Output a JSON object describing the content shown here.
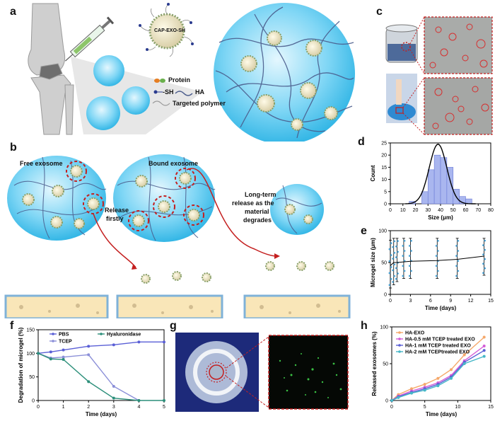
{
  "panel_labels": {
    "a": "a",
    "b": "b",
    "c": "c",
    "d": "d",
    "e": "e",
    "f": "f",
    "g": "g",
    "h": "h"
  },
  "panel_a": {
    "exo_label": "CAP-EXO-SH",
    "legend": {
      "protein": "Protein",
      "sh": "-SH",
      "ha": "HA",
      "polymer": "Targeted polymer"
    }
  },
  "panel_b": {
    "free": "Free exosome",
    "bound": "Bound exosome",
    "release_firstly": [
      "Release",
      "firstly"
    ],
    "long_term": [
      "Long-term",
      "release as the",
      "material",
      "degrades"
    ]
  },
  "colors": {
    "gel": "#5ccbf0",
    "gel_light": "#d4f2fc",
    "red_dash": "#c41f1f",
    "tissue": "#f9e6b8",
    "tissue_edge": "#7fb2d8"
  },
  "chart_data": [
    {
      "id": "d",
      "type": "bar",
      "xlabel": "Size (μm)",
      "ylabel": "Count",
      "xlim": [
        0,
        80
      ],
      "ylim": [
        0,
        25
      ],
      "xticks": [
        0,
        10,
        20,
        30,
        40,
        50,
        60,
        70,
        80
      ],
      "yticks": [
        0,
        5,
        10,
        15,
        20,
        25
      ],
      "bins": [
        {
          "x0": 15,
          "x1": 20,
          "count": 1
        },
        {
          "x0": 25,
          "x1": 30,
          "count": 5
        },
        {
          "x0": 30,
          "x1": 35,
          "count": 14
        },
        {
          "x0": 35,
          "x1": 40,
          "count": 20
        },
        {
          "x0": 40,
          "x1": 45,
          "count": 19
        },
        {
          "x0": 45,
          "x1": 50,
          "count": 15
        },
        {
          "x0": 50,
          "x1": 55,
          "count": 6
        },
        {
          "x0": 55,
          "x1": 60,
          "count": 3
        },
        {
          "x0": 60,
          "x1": 65,
          "count": 2
        }
      ],
      "fit": {
        "mean": 38,
        "sd": 7,
        "peak": 24.5
      }
    },
    {
      "id": "e",
      "type": "scatter",
      "xlabel": "Time (days)",
      "ylabel": "Microgel size (μm)",
      "xlim": [
        0,
        15
      ],
      "ylim": [
        0,
        100
      ],
      "xticks": [
        0,
        3,
        6,
        9,
        12,
        15
      ],
      "yticks": [
        0,
        50,
        100
      ],
      "x": [
        0,
        0.5,
        1,
        2,
        3,
        7,
        10,
        14
      ],
      "mean": [
        45,
        50,
        50,
        51,
        52,
        53,
        55,
        60
      ],
      "err_low": [
        10,
        15,
        20,
        25,
        25,
        25,
        25,
        30
      ],
      "err_high": [
        85,
        88,
        88,
        88,
        88,
        88,
        88,
        88
      ]
    },
    {
      "id": "f",
      "type": "line",
      "xlabel": "Time (days)",
      "ylabel": "Degradation of microgel (%)",
      "xlim": [
        0,
        5
      ],
      "ylim": [
        0,
        150
      ],
      "xticks": [
        0,
        1,
        2,
        3,
        4,
        5
      ],
      "yticks": [
        0,
        50,
        100,
        150
      ],
      "series": [
        {
          "name": "PBS",
          "color": "#5a5fd6",
          "x": [
            0,
            0.5,
            1,
            2,
            3,
            4,
            5
          ],
          "y": [
            100,
            103,
            107,
            115,
            118,
            124,
            124
          ]
        },
        {
          "name": "TCEP",
          "color": "#8b8fd8",
          "x": [
            0,
            0.5,
            1,
            2,
            3,
            4
          ],
          "y": [
            100,
            90,
            92,
            97,
            30,
            0
          ]
        },
        {
          "name": "Hyaluronidase",
          "color": "#2c8f7a",
          "x": [
            0,
            0.5,
            1,
            2,
            3,
            4,
            5
          ],
          "y": [
            100,
            88,
            87,
            40,
            5,
            0,
            0
          ]
        }
      ]
    },
    {
      "id": "h",
      "type": "line",
      "xlabel": "Time (days)",
      "ylabel": "Released exosomes (%)",
      "xlim": [
        0,
        15
      ],
      "ylim": [
        0,
        100
      ],
      "xticks": [
        0,
        5,
        10,
        15
      ],
      "yticks": [
        0,
        50,
        100
      ],
      "series": [
        {
          "name": "HA-EXO",
          "color": "#f5a86a",
          "x": [
            0,
            1,
            3,
            5,
            7,
            9,
            11,
            14
          ],
          "y": [
            0,
            8,
            16,
            22,
            30,
            42,
            62,
            86
          ]
        },
        {
          "name": "HA-0.5 mM TCEP treated EXO",
          "color": "#d45cd6",
          "x": [
            0,
            1,
            3,
            5,
            7,
            9,
            11,
            14
          ],
          "y": [
            0,
            6,
            13,
            18,
            24,
            34,
            54,
            74
          ]
        },
        {
          "name": "HA-1 mM TCEP treated EXO",
          "color": "#5a5fd6",
          "x": [
            0,
            1,
            3,
            5,
            7,
            9,
            11,
            14
          ],
          "y": [
            0,
            5,
            11,
            16,
            22,
            32,
            52,
            68
          ]
        },
        {
          "name": "HA-2 mM TCEPtreated EXO",
          "color": "#46b7c7",
          "x": [
            0,
            1,
            3,
            5,
            7,
            9,
            11,
            14
          ],
          "y": [
            0,
            4,
            10,
            14,
            20,
            30,
            50,
            60
          ]
        }
      ]
    }
  ]
}
